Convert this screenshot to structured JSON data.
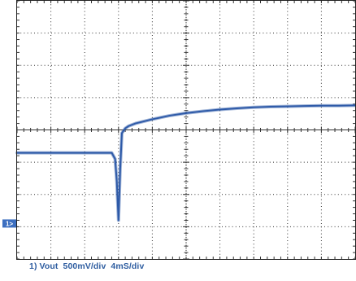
{
  "chart_data": {
    "type": "line",
    "caption": "1) Vout  500mV/div  4mS/div",
    "channel_marker": "1>",
    "grid": true,
    "divisions": {
      "horizontal": 10,
      "vertical": 8
    },
    "trace_color": "#2e5aa8",
    "grid_color": "#333333",
    "series": [
      {
        "x": [
          0,
          0.5,
          1.0,
          1.5,
          2.0,
          2.5,
          2.8,
          2.9,
          2.95,
          3.0,
          3.05,
          3.1,
          3.2,
          3.3,
          3.5,
          4.0,
          4.5,
          5.0,
          5.5,
          6.0,
          6.5,
          7.0,
          7.5,
          8.0,
          8.5,
          9.0,
          9.5,
          10.0
        ],
        "y": [
          -0.71,
          -0.71,
          -0.71,
          -0.71,
          -0.71,
          -0.71,
          -0.71,
          -0.9,
          -1.6,
          -2.8,
          -1.2,
          -0.1,
          0.05,
          0.12,
          0.2,
          0.33,
          0.44,
          0.52,
          0.58,
          0.63,
          0.67,
          0.7,
          0.72,
          0.73,
          0.74,
          0.75,
          0.75,
          0.76
        ]
      }
    ],
    "ground_marker_div": -2.9,
    "xlim": [
      0,
      10
    ],
    "ylim": [
      -4,
      4
    ]
  }
}
